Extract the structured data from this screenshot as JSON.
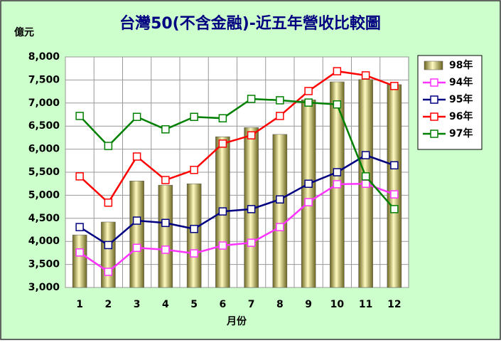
{
  "chart_data": {
    "type": "bar",
    "title": "台灣50(不含金融)-近五年營收比較圖",
    "y_label": "億元",
    "x_label": "月份",
    "categories": [
      "1",
      "2",
      "3",
      "4",
      "5",
      "6",
      "7",
      "8",
      "9",
      "10",
      "11",
      "12"
    ],
    "ylim": [
      3000,
      8000
    ],
    "yticks": [
      {
        "value": 3000,
        "label": "3,000"
      },
      {
        "value": 3500,
        "label": "3,500"
      },
      {
        "value": 4000,
        "label": "4,000"
      },
      {
        "value": 4500,
        "label": "4,500"
      },
      {
        "value": 5000,
        "label": "5,000"
      },
      {
        "value": 5500,
        "label": "5,500"
      },
      {
        "value": 6000,
        "label": "6,000"
      },
      {
        "value": 6500,
        "label": "6,500"
      },
      {
        "value": 7000,
        "label": "7,000"
      },
      {
        "value": 7500,
        "label": "7,500"
      },
      {
        "value": 8000,
        "label": "8,000"
      }
    ],
    "grid": true,
    "legend": "right",
    "series": [
      {
        "name": "98年",
        "type": "bar",
        "color": "#c8c060",
        "values": [
          4140,
          4420,
          5310,
          5220,
          5250,
          6270,
          6470,
          6320,
          7070,
          7460,
          7510,
          7400
        ]
      },
      {
        "name": "94年",
        "type": "line",
        "color": "#ff33ff",
        "values": [
          3760,
          3340,
          3860,
          3820,
          3740,
          3910,
          3970,
          4310,
          4850,
          5240,
          5250,
          5020
        ]
      },
      {
        "name": "95年",
        "type": "line",
        "color": "#000080",
        "values": [
          4310,
          3920,
          4450,
          4400,
          4270,
          4650,
          4700,
          4910,
          5250,
          5500,
          5870,
          5650
        ]
      },
      {
        "name": "96年",
        "type": "line",
        "color": "#ff0000",
        "values": [
          5410,
          4840,
          5840,
          5330,
          5550,
          6120,
          6300,
          6720,
          7260,
          7690,
          7600,
          7370
        ]
      },
      {
        "name": "97年",
        "type": "line",
        "color": "#008000",
        "values": [
          6720,
          6070,
          6700,
          6430,
          6700,
          6670,
          7090,
          7060,
          7010,
          6970,
          5410,
          4700
        ]
      }
    ]
  }
}
